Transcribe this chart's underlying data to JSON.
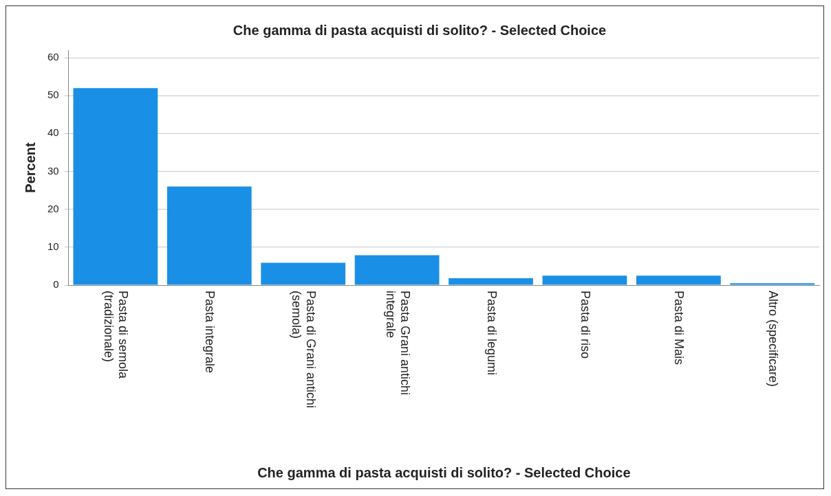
{
  "chart_data": {
    "type": "bar",
    "title": "Che gamma di pasta acquisti di solito? - Selected Choice",
    "xlabel": "Che gamma di pasta acquisti di solito? - Selected Choice",
    "ylabel": "Percent",
    "categories": [
      "Pasta di semola (tradizionale)",
      "Pasta integrale",
      "Pasta di Grani antichi (semola)",
      "Pasta Grani antichi integrale",
      "Pasta di legumi",
      "Pasta di riso",
      "Pasta di Mais",
      "Altro (specificare)"
    ],
    "values": [
      52,
      26,
      5.9,
      7.9,
      1.8,
      2.5,
      2.5,
      0.5
    ],
    "color": "#1a8fe6",
    "ylim": [
      0,
      62
    ],
    "yticks": [
      0,
      10,
      20,
      30,
      40,
      50,
      60
    ],
    "grid": "y",
    "legend": false
  }
}
